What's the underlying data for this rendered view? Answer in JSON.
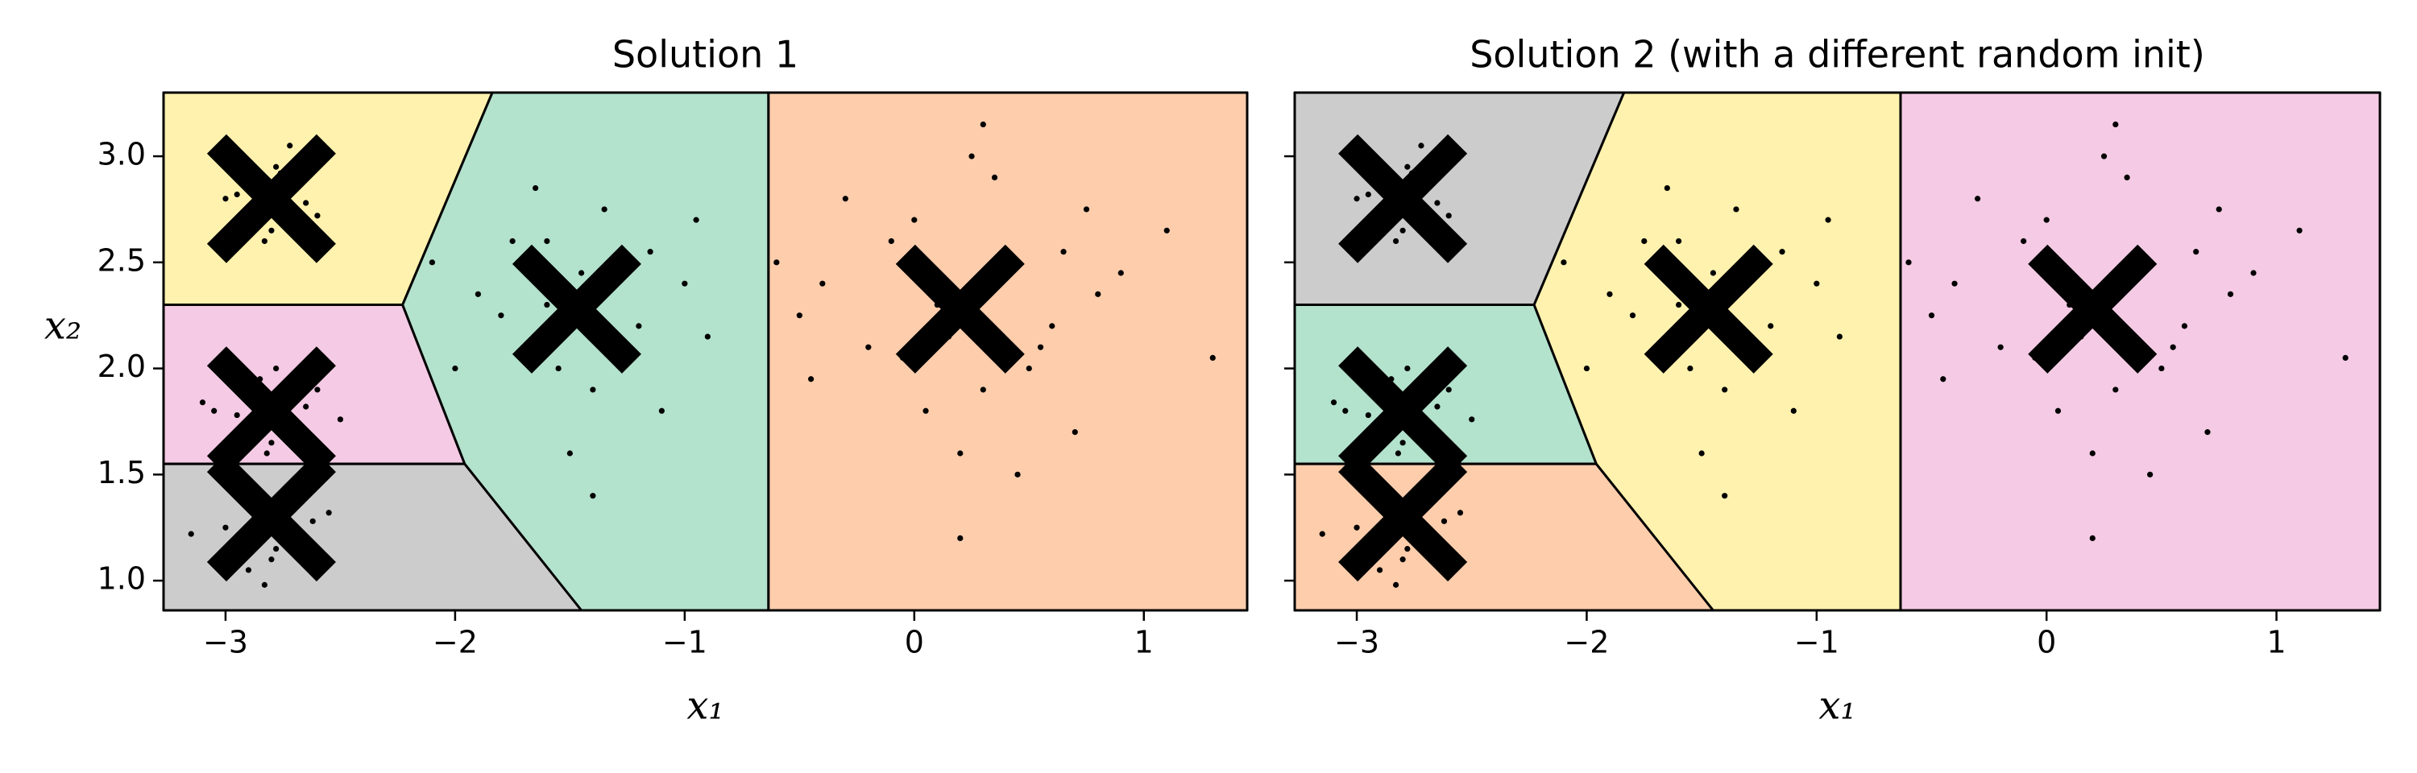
{
  "chart_data": [
    {
      "type": "scatter",
      "title": "Solution 1",
      "xlabel": "x₁",
      "ylabel": "x₂",
      "xlim": [
        -3.27,
        1.45
      ],
      "ylim": [
        0.86,
        3.3
      ],
      "xticks": [
        {
          "value": -3,
          "label": "−3"
        },
        {
          "value": -2,
          "label": "−2"
        },
        {
          "value": -1,
          "label": "−1"
        },
        0,
        1
      ],
      "yticks": [
        {
          "value": 1,
          "label": "1.0"
        },
        1.5,
        {
          "value": 2,
          "label": "2.0"
        },
        2.5,
        {
          "value": 3,
          "label": "3.0"
        }
      ],
      "ytick_labels": true,
      "region_colors": [
        "#fff2ae",
        "#f4cae4",
        "#cccccc",
        "#b3e2cd",
        "#fdcdac"
      ],
      "point_color": "#000000",
      "centroid_color": "#000000",
      "centroids": {
        "x": [
          -2.8,
          -2.8,
          -2.8,
          -1.47,
          0.2
        ],
        "y": [
          2.8,
          1.8,
          1.3,
          2.28,
          2.28
        ]
      },
      "points": {
        "x": [
          -2.85,
          -2.75,
          -2.9,
          -2.7,
          -2.82,
          -2.78,
          -2.95,
          -2.65,
          -2.8,
          -2.88,
          -2.72,
          -2.6,
          -3.0,
          -2.83,
          -2.76,
          -2.9,
          -2.75,
          -2.85,
          -2.7,
          -3.05,
          -2.6,
          -2.8,
          -2.95,
          -2.78,
          -2.65,
          -2.88,
          -2.72,
          -2.5,
          -3.1,
          -2.82,
          -2.85,
          -2.7,
          -2.9,
          -2.75,
          -3.0,
          -2.62,
          -2.8,
          -2.95,
          -2.78,
          -2.68,
          -3.15,
          -2.55,
          -2.83,
          -2.9,
          -2.72,
          -1.5,
          -1.3,
          -1.7,
          -1.2,
          -1.6,
          -1.4,
          -1.9,
          -1.0,
          -1.55,
          -1.35,
          -1.8,
          -1.1,
          -1.45,
          -2.1,
          -0.9,
          -1.65,
          -1.25,
          -1.5,
          -1.75,
          -1.15,
          -1.4,
          -2.0,
          -0.95,
          -1.6,
          -1.3,
          0.1,
          0.4,
          -0.2,
          0.6,
          0.0,
          0.3,
          -0.4,
          0.8,
          0.2,
          -0.1,
          0.5,
          0.9,
          -0.5,
          0.25,
          0.7,
          -0.3,
          0.15,
          1.1,
          0.45,
          -0.05,
          0.35,
          -0.6,
          0.65,
          0.05,
          0.55,
          1.3,
          -0.45,
          0.2,
          0.75,
          0.3
        ],
        "y": [
          2.85,
          2.75,
          2.7,
          2.9,
          2.8,
          2.95,
          2.82,
          2.78,
          2.65,
          2.88,
          3.05,
          2.72,
          2.8,
          2.6,
          2.92,
          1.85,
          1.75,
          1.95,
          1.7,
          1.8,
          1.9,
          1.65,
          1.78,
          2.0,
          1.82,
          1.72,
          1.88,
          1.76,
          1.84,
          1.6,
          1.3,
          1.2,
          1.4,
          1.35,
          1.25,
          1.28,
          1.1,
          1.45,
          1.15,
          1.38,
          1.22,
          1.32,
          0.98,
          1.05,
          1.42,
          2.3,
          2.5,
          2.1,
          2.2,
          2.6,
          1.9,
          2.35,
          2.4,
          2.0,
          2.75,
          2.25,
          1.8,
          2.45,
          2.5,
          2.15,
          2.85,
          2.05,
          1.6,
          2.6,
          2.55,
          1.4,
          2.0,
          2.7,
          2.3,
          2.15,
          2.3,
          2.5,
          2.1,
          2.2,
          2.7,
          1.9,
          2.4,
          2.35,
          1.6,
          2.6,
          2.0,
          2.45,
          2.25,
          3.0,
          1.7,
          2.8,
          2.15,
          2.65,
          1.5,
          2.05,
          2.9,
          2.5,
          2.55,
          1.8,
          2.1,
          2.05,
          1.95,
          1.2,
          2.75,
          3.15
        ]
      }
    },
    {
      "type": "scatter",
      "title": "Solution 2 (with a different random init)",
      "xlabel": "x₁",
      "xlim": [
        -3.27,
        1.45
      ],
      "ylim": [
        0.86,
        3.3
      ],
      "xticks": [
        {
          "value": -3,
          "label": "−3"
        },
        {
          "value": -2,
          "label": "−2"
        },
        {
          "value": -1,
          "label": "−1"
        },
        0,
        1
      ],
      "yticks": [
        1,
        1.5,
        2,
        2.5,
        3
      ],
      "ytick_labels": false,
      "region_colors": [
        "#cccccc",
        "#b3e2cd",
        "#fdcdac",
        "#fff2ae",
        "#f4cae4"
      ],
      "point_color": "#000000",
      "centroid_color": "#000000",
      "centroids": {
        "x": [
          -2.8,
          -2.8,
          -2.8,
          -1.47,
          0.2
        ],
        "y": [
          2.8,
          1.8,
          1.3,
          2.28,
          2.28
        ]
      },
      "points": {
        "x": [
          -2.85,
          -2.75,
          -2.9,
          -2.7,
          -2.82,
          -2.78,
          -2.95,
          -2.65,
          -2.8,
          -2.88,
          -2.72,
          -2.6,
          -3.0,
          -2.83,
          -2.76,
          -2.9,
          -2.75,
          -2.85,
          -2.7,
          -3.05,
          -2.6,
          -2.8,
          -2.95,
          -2.78,
          -2.65,
          -2.88,
          -2.72,
          -2.5,
          -3.1,
          -2.82,
          -2.85,
          -2.7,
          -2.9,
          -2.75,
          -3.0,
          -2.62,
          -2.8,
          -2.95,
          -2.78,
          -2.68,
          -3.15,
          -2.55,
          -2.83,
          -2.9,
          -2.72,
          -1.5,
          -1.3,
          -1.7,
          -1.2,
          -1.6,
          -1.4,
          -1.9,
          -1.0,
          -1.55,
          -1.35,
          -1.8,
          -1.1,
          -1.45,
          -2.1,
          -0.9,
          -1.65,
          -1.25,
          -1.5,
          -1.75,
          -1.15,
          -1.4,
          -2.0,
          -0.95,
          -1.6,
          -1.3,
          0.1,
          0.4,
          -0.2,
          0.6,
          0.0,
          0.3,
          -0.4,
          0.8,
          0.2,
          -0.1,
          0.5,
          0.9,
          -0.5,
          0.25,
          0.7,
          -0.3,
          0.15,
          1.1,
          0.45,
          -0.05,
          0.35,
          -0.6,
          0.65,
          0.05,
          0.55,
          1.3,
          -0.45,
          0.2,
          0.75,
          0.3
        ],
        "y": [
          2.85,
          2.75,
          2.7,
          2.9,
          2.8,
          2.95,
          2.82,
          2.78,
          2.65,
          2.88,
          3.05,
          2.72,
          2.8,
          2.6,
          2.92,
          1.85,
          1.75,
          1.95,
          1.7,
          1.8,
          1.9,
          1.65,
          1.78,
          2.0,
          1.82,
          1.72,
          1.88,
          1.76,
          1.84,
          1.6,
          1.3,
          1.2,
          1.4,
          1.35,
          1.25,
          1.28,
          1.1,
          1.45,
          1.15,
          1.38,
          1.22,
          1.32,
          0.98,
          1.05,
          1.42,
          2.3,
          2.5,
          2.1,
          2.2,
          2.6,
          1.9,
          2.35,
          2.4,
          2.0,
          2.75,
          2.25,
          1.8,
          2.45,
          2.5,
          2.15,
          2.85,
          2.05,
          1.6,
          2.6,
          2.55,
          1.4,
          2.0,
          2.7,
          2.3,
          2.15,
          2.3,
          2.5,
          2.1,
          2.2,
          2.7,
          1.9,
          2.4,
          2.35,
          1.6,
          2.6,
          2.0,
          2.45,
          2.25,
          3.0,
          1.7,
          2.8,
          2.15,
          2.65,
          1.5,
          2.05,
          2.9,
          2.5,
          2.55,
          1.8,
          2.1,
          2.05,
          1.95,
          1.2,
          2.75,
          3.15
        ]
      }
    }
  ]
}
